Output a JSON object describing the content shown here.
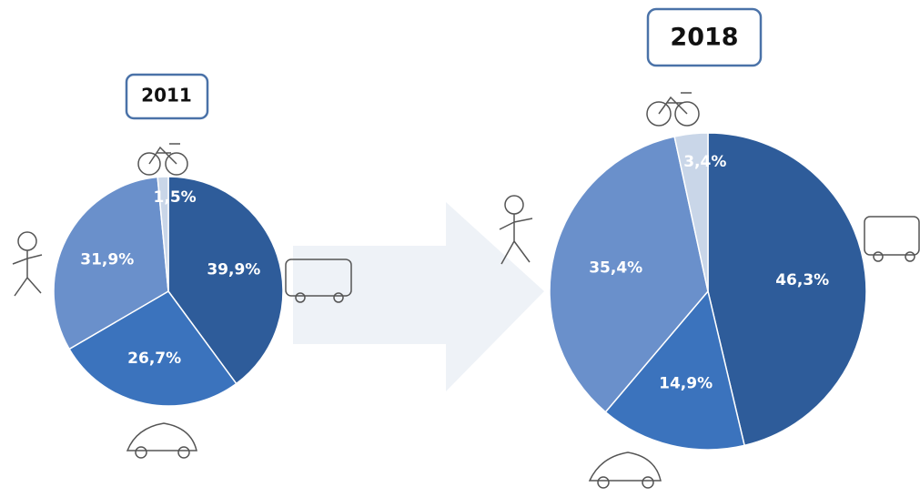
{
  "chart_data": [
    {
      "type": "pie",
      "title": "2011",
      "values": [
        39.9,
        26.7,
        31.9,
        1.5
      ],
      "value_labels": [
        "39,9%",
        "26,7%",
        "31,9%",
        "1,5%"
      ],
      "colors": [
        "#2e5c9a",
        "#3b73bd",
        "#6a90cb",
        "#c9d6e8"
      ]
    },
    {
      "type": "pie",
      "title": "2018",
      "values": [
        46.3,
        14.9,
        35.4,
        3.4
      ],
      "value_labels": [
        "46,3%",
        "14,9%",
        "35,4%",
        "3,4%"
      ],
      "colors": [
        "#2e5c9a",
        "#3b73bd",
        "#6a90cb",
        "#c9d6e8"
      ]
    }
  ]
}
